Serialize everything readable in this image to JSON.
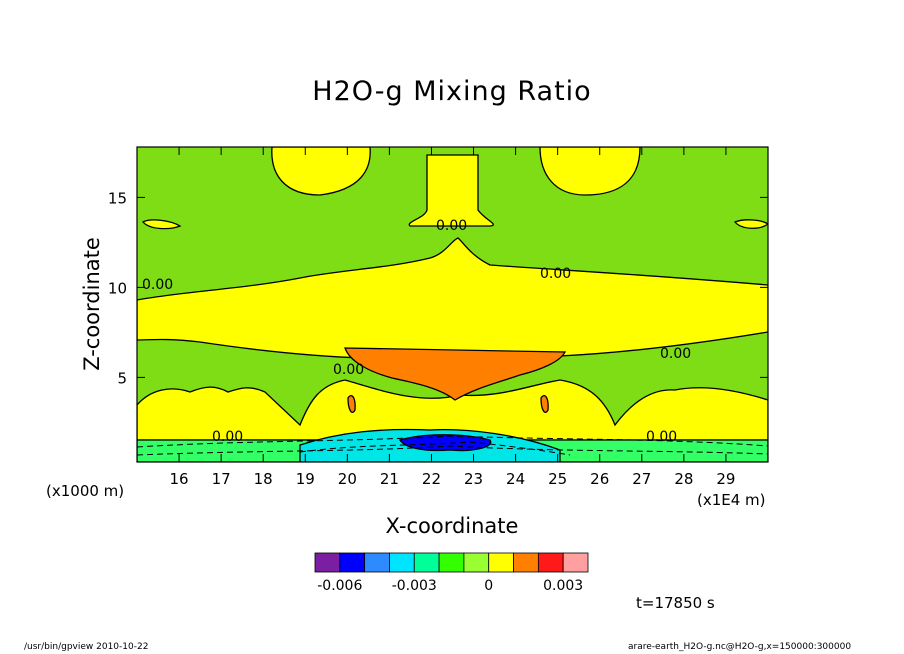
{
  "chart_data": {
    "type": "heatmap",
    "title": "H2O-g Mixing Ratio",
    "xlabel": "X-coordinate",
    "ylabel": "Z-coordinate",
    "x_unit_label": "(x1E4 m)",
    "y_unit_label": "(x1000 m)",
    "x_ticks": [
      16,
      17,
      18,
      19,
      20,
      21,
      22,
      23,
      24,
      25,
      26,
      27,
      28,
      29
    ],
    "y_ticks": [
      5,
      10,
      15
    ],
    "xlim": [
      15,
      30
    ],
    "ylim": [
      0.3,
      17.8
    ],
    "contour_labels": [
      "0.00",
      "0.00",
      "0.00",
      "0.00",
      "0.00",
      "0.00",
      "0.00"
    ],
    "colorbar": {
      "colors": [
        "#7b1fa2",
        "#0000ff",
        "#2e8bff",
        "#00e5ff",
        "#00ff99",
        "#33ff00",
        "#99ff33",
        "#ffff00",
        "#ff8000",
        "#ff1a1a",
        "#ff9f9f"
      ],
      "tick_labels": [
        "-0.006",
        "-0.003",
        "0",
        "0.003"
      ]
    },
    "field_colors": {
      "background": "#7fdd16",
      "positive": "#ffff00",
      "high": "#ff8000",
      "negative_mild": "#33ff66",
      "negative": "#00e5e5",
      "strong_negative": "#0000ff"
    }
  },
  "annotations": {
    "time": "t=17850 s",
    "footer_left": "/usr/bin/gpview   2010-10-22",
    "footer_right": "arare-earth_H2O-g.nc@H2O-g,x=150000:300000"
  }
}
